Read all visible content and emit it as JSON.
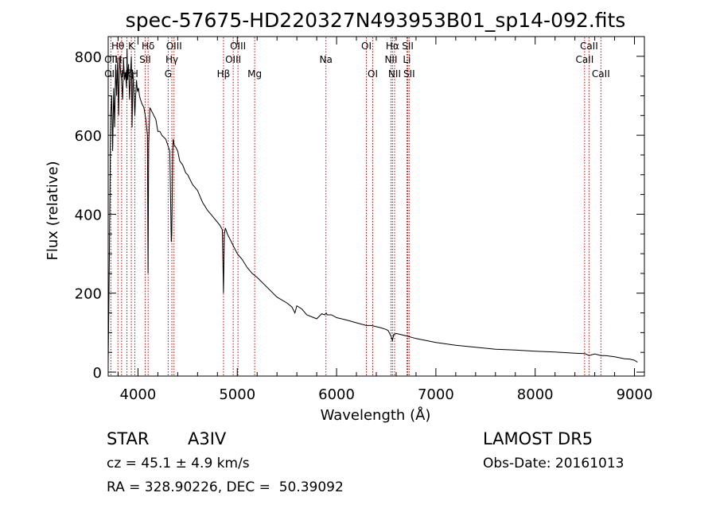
{
  "chart_data": {
    "type": "line",
    "title": "spec-57675-HD220327N493953B01_sp14-092.fits",
    "xlabel": "Wavelength (Å)",
    "ylabel": "Flux (relative)",
    "xlim": [
      3700,
      9100
    ],
    "ylim": [
      -10,
      850
    ],
    "xticks": [
      4000,
      5000,
      6000,
      7000,
      8000,
      9000
    ],
    "yticks": [
      0,
      200,
      400,
      600,
      800
    ],
    "grid": false,
    "legend": "none",
    "series": [
      {
        "x": [
          3700,
          3712,
          3725,
          3735,
          3745,
          3755,
          3765,
          3775,
          3785,
          3795,
          3805,
          3815,
          3825,
          3835,
          3845,
          3855,
          3865,
          3875,
          3885,
          3890,
          3895,
          3905,
          3915,
          3925,
          3933,
          3940,
          3950,
          3960,
          3968,
          3975,
          3985,
          3995,
          4005,
          4015,
          4025,
          4040,
          4060,
          4080,
          4095,
          4101,
          4108,
          4120,
          4140,
          4160,
          4180,
          4200,
          4220,
          4240,
          4260,
          4280,
          4300,
          4320,
          4330,
          4335,
          4340,
          4345,
          4350,
          4355,
          4365,
          4380,
          4400,
          4420,
          4450,
          4480,
          4500,
          4550,
          4600,
          4650,
          4700,
          4750,
          4800,
          4830,
          4850,
          4856,
          4861,
          4866,
          4870,
          4880,
          4900,
          4950,
          5000,
          5050,
          5100,
          5150,
          5200,
          5300,
          5400,
          5500,
          5550,
          5580,
          5600,
          5650,
          5700,
          5750,
          5800,
          5850,
          5880,
          5895,
          5905,
          5950,
          6000,
          6100,
          6200,
          6300,
          6350,
          6400,
          6450,
          6500,
          6520,
          6550,
          6563,
          6575,
          6600,
          6650,
          6700,
          6800,
          6900,
          7000,
          7200,
          7400,
          7600,
          7800,
          8000,
          8200,
          8400,
          8500,
          8542,
          8600,
          8662,
          8700,
          8800,
          8900,
          8950,
          9000,
          9030
        ],
        "y": [
          20,
          300,
          650,
          700,
          560,
          720,
          620,
          780,
          700,
          790,
          650,
          800,
          760,
          740,
          690,
          790,
          740,
          760,
          720,
          820,
          740,
          780,
          690,
          760,
          800,
          620,
          760,
          700,
          650,
          690,
          740,
          710,
          720,
          700,
          690,
          680,
          670,
          640,
          600,
          250,
          580,
          670,
          660,
          650,
          640,
          610,
          610,
          600,
          595,
          590,
          575,
          560,
          420,
          330,
          350,
          440,
          560,
          590,
          575,
          570,
          560,
          535,
          525,
          505,
          500,
          475,
          460,
          430,
          410,
          395,
          380,
          370,
          360,
          270,
          200,
          280,
          350,
          365,
          350,
          325,
          300,
          285,
          265,
          250,
          240,
          215,
          190,
          175,
          165,
          150,
          168,
          160,
          145,
          140,
          135,
          148,
          145,
          150,
          145,
          145,
          138,
          132,
          125,
          118,
          118,
          115,
          112,
          108,
          105,
          90,
          80,
          95,
          98,
          95,
          92,
          85,
          80,
          75,
          68,
          63,
          58,
          56,
          53,
          51,
          48,
          47,
          42,
          46,
          42,
          42,
          39,
          34,
          33,
          30,
          25
        ]
      }
    ],
    "annotations": {
      "lines": [
        {
          "label": "Hθ",
          "x": 3798,
          "row": 1
        },
        {
          "label": "OII",
          "x": 3727,
          "row": 2
        },
        {
          "label": "OII",
          "x": 3727,
          "row": 3
        },
        {
          "label": "Hη",
          "x": 3835,
          "row": 2
        },
        {
          "label": "Hζ",
          "x": 3889,
          "row": 3
        },
        {
          "label": "K",
          "x": 3933,
          "row": 1
        },
        {
          "label": "H",
          "x": 3968,
          "row": 3
        },
        {
          "label": "Hδ",
          "x": 4102,
          "row": 1
        },
        {
          "label": "SII",
          "x": 4072,
          "row": 2
        },
        {
          "label": "OIII",
          "x": 4363,
          "row": 1
        },
        {
          "label": "Hγ",
          "x": 4341,
          "row": 2
        },
        {
          "label": "G",
          "x": 4304,
          "row": 3
        },
        {
          "label": "OIII",
          "x": 5007,
          "row": 1
        },
        {
          "label": "OIII",
          "x": 4959,
          "row": 2
        },
        {
          "label": "Hβ",
          "x": 4861,
          "row": 3
        },
        {
          "label": "Mg",
          "x": 5175,
          "row": 3
        },
        {
          "label": "Na",
          "x": 5893,
          "row": 2
        },
        {
          "label": "OI",
          "x": 6300,
          "row": 1
        },
        {
          "label": "OI",
          "x": 6364,
          "row": 3
        },
        {
          "label": "Hα",
          "x": 6563,
          "row": 1
        },
        {
          "label": "NII",
          "x": 6548,
          "row": 2
        },
        {
          "label": "NII",
          "x": 6584,
          "row": 3
        },
        {
          "label": "SII",
          "x": 6717,
          "row": 1
        },
        {
          "label": "Li",
          "x": 6708,
          "row": 2
        },
        {
          "label": "SII",
          "x": 6731,
          "row": 3
        },
        {
          "label": "CaII",
          "x": 8542,
          "row": 1
        },
        {
          "label": "CaII",
          "x": 8498,
          "row": 2
        },
        {
          "label": "CaII",
          "x": 8662,
          "row": 3
        }
      ]
    }
  },
  "info": {
    "object_class": "STAR",
    "subclass": "A3IV",
    "survey": "LAMOST DR5",
    "redshift": "cz = 45.1 ± 4.9 km/s",
    "obs_date": "Obs-Date: 20161013",
    "coords": "RA = 328.90226, DEC =  50.39092"
  },
  "colors": {
    "spectrum": "#000000",
    "line_markers": "#cc0000",
    "axes": "#000000"
  }
}
